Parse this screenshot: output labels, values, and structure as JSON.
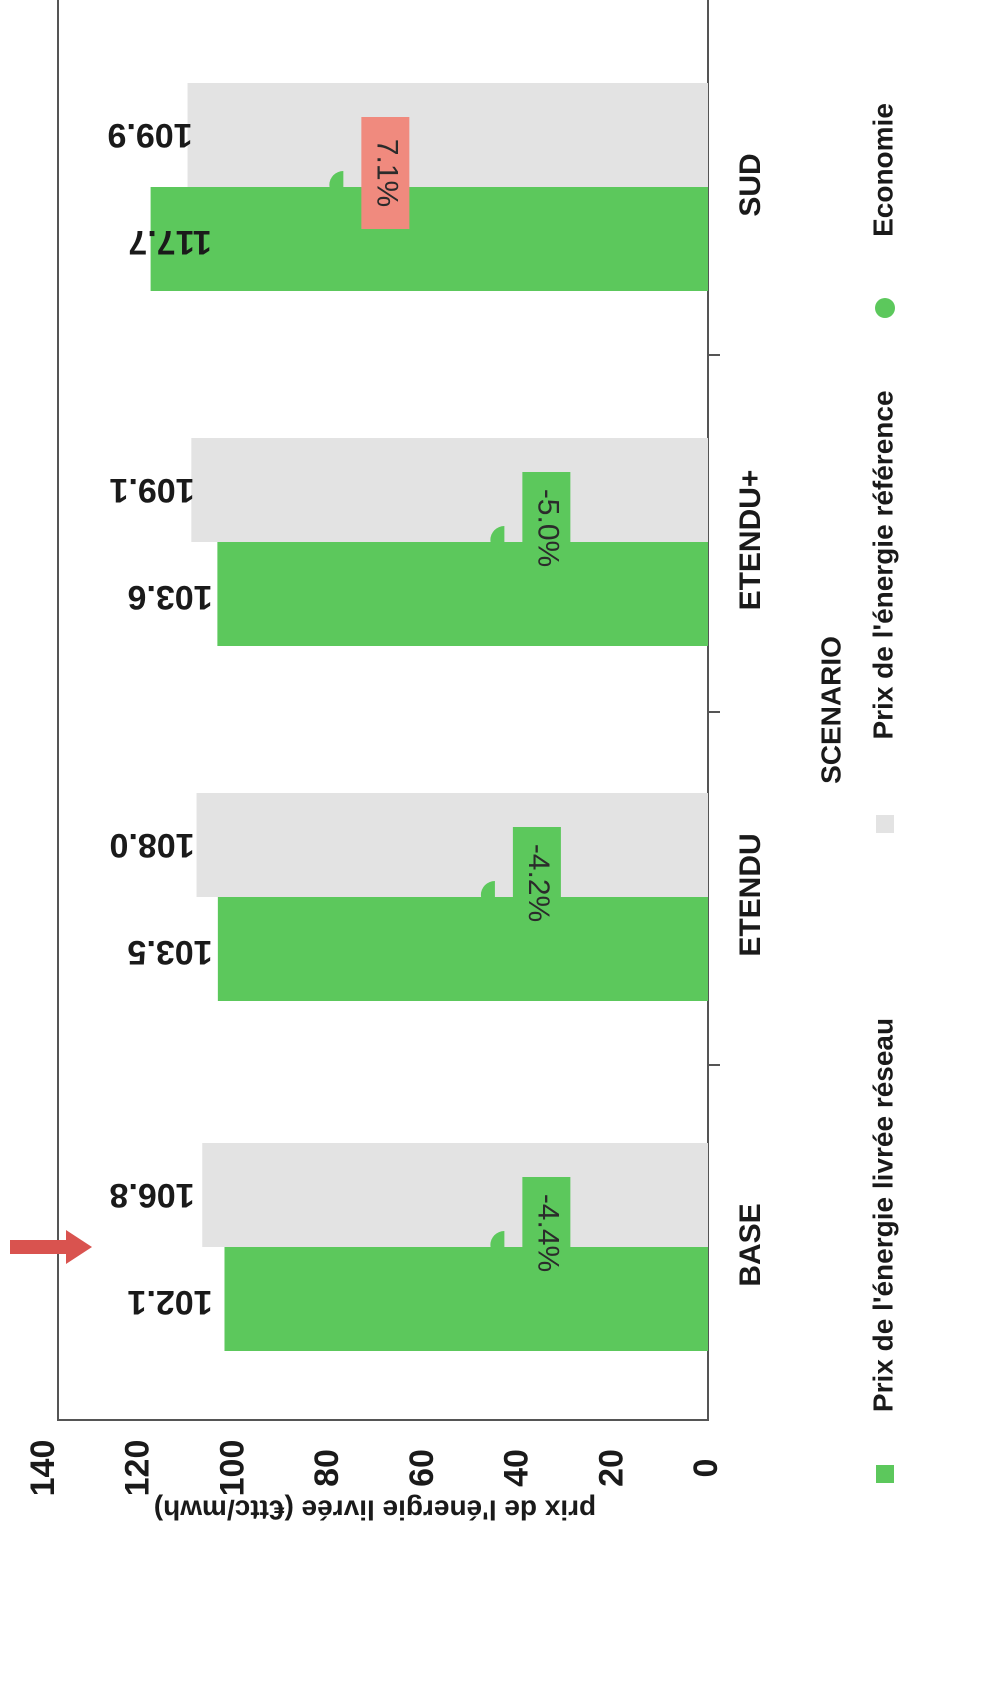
{
  "chart_data": {
    "type": "bar",
    "title": "",
    "xlabel": "SCENARIO",
    "ylabel": "prix de l'énergie livrée (€ttc/mwh)",
    "ylim": [
      0,
      140
    ],
    "yticks": [
      0,
      20,
      40,
      60,
      80,
      100,
      120,
      140
    ],
    "orientation": "rotated-90-clockwise",
    "categories": [
      "BASE",
      "ETENDU",
      "ETENDU+",
      "SUD"
    ],
    "series": [
      {
        "name": "Prix de l'énergie livrée réseau",
        "color": "#5cc85c",
        "values": [
          102.1,
          103.5,
          103.6,
          117.7
        ],
        "labels": [
          "102.1",
          "103.5",
          "103.6",
          "117.7"
        ]
      },
      {
        "name": "Prix de l'énergie référence",
        "color": "#e3e3e3",
        "values": [
          106.8,
          108.0,
          109.1,
          109.9
        ],
        "labels": [
          "106.8",
          "108.0",
          "109.1",
          "109.9"
        ]
      },
      {
        "name": "Economie",
        "color": "#5cc85c",
        "kind": "marker",
        "values": [
          -4.4,
          -4.2,
          -5.0,
          7.1
        ],
        "labels": [
          "-4.4%",
          "-4.2%",
          "-5.0%",
          "7.1%"
        ],
        "label_colors": [
          "#5cc85c",
          "#5cc85c",
          "#5cc85c",
          "#f08a7e"
        ],
        "marker_y": [
          43,
          45,
          43,
          77
        ]
      }
    ],
    "legend_position": "bottom",
    "grid": false,
    "annotations": [
      {
        "type": "arrow",
        "target": "BASE",
        "color": "#d9534f"
      }
    ]
  }
}
